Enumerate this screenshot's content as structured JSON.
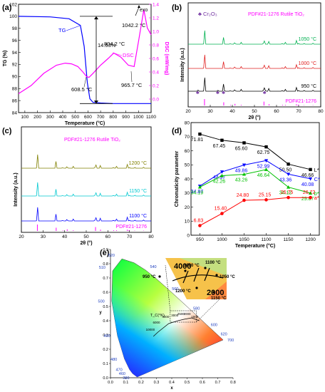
{
  "chart_data": [
    {
      "panel": "(a)",
      "type": "line",
      "xlabel": "Temperature (°C)",
      "ylabel_left": "TG (%)",
      "ylabel_right": "DSC (mW/mg)",
      "xlim": [
        50,
        1100
      ],
      "ylim_left": [
        84,
        102
      ],
      "ylim_right": [
        -0.2,
        1.4
      ],
      "x_ticks": [
        100,
        200,
        300,
        400,
        500,
        600,
        700,
        800,
        900,
        1000,
        1100
      ],
      "y_ticks_left": [
        84,
        86,
        88,
        90,
        92,
        94,
        96,
        98,
        100,
        102
      ],
      "y_ticks_right": [
        0.0,
        0.2,
        0.4,
        0.6,
        0.8,
        1.0,
        1.2,
        1.4
      ],
      "series": [
        {
          "name": "TG",
          "axis": "left",
          "color": "#0000ff",
          "x": [
            50,
            300,
            450,
            540,
            570,
            595,
            615,
            640,
            700,
            800,
            950,
            1100
          ],
          "y": [
            100,
            99.9,
            99.6,
            98.5,
            95,
            89,
            86.3,
            85.7,
            85.6,
            85.5,
            85.5,
            85.5
          ]
        },
        {
          "name": "DSC",
          "axis": "right",
          "color": "#ff00ff",
          "x": [
            50,
            150,
            250,
            350,
            420,
            470,
            520,
            560,
            590,
            608.5,
            640,
            700,
            760,
            804.2,
            860,
            920,
            965.7,
            1000,
            1042.2,
            1070,
            1100
          ],
          "y": [
            0.08,
            0.2,
            0.38,
            0.5,
            0.53,
            0.52,
            0.48,
            0.4,
            0.33,
            0.32,
            0.38,
            0.5,
            0.6,
            0.68,
            0.62,
            0.5,
            0.48,
            0.85,
            1.32,
            1.05,
            0.95
          ]
        }
      ],
      "annotations": [
        "14.53%",
        "608.5 °C",
        "804.2 °C",
        "965.7 °C",
        "1042.2 °C",
        "exo"
      ]
    },
    {
      "panel": "(b)",
      "type": "line",
      "xlabel": "2θ (°)",
      "ylabel": "Intensity (a.u.)",
      "xlim": [
        20,
        80
      ],
      "x_ticks": [
        20,
        30,
        40,
        50,
        60,
        70,
        80
      ],
      "legend": [
        "Cr₂O₃",
        "PDF#21-1276  Rutile TiO₂"
      ],
      "series": [
        {
          "name": "1050 °C",
          "color": "#00b050"
        },
        {
          "name": "1000 °C",
          "color": "#e02020"
        },
        {
          "name": "950 °C",
          "color": "#000000"
        },
        {
          "name": "PDF#21-1276",
          "color": "#ff00ff"
        }
      ],
      "rutile_peaks": [
        [
          27.4,
          100
        ],
        [
          36.1,
          50
        ],
        [
          39.2,
          8
        ],
        [
          41.2,
          25
        ],
        [
          44.0,
          10
        ],
        [
          54.3,
          60
        ],
        [
          56.6,
          20
        ],
        [
          62.7,
          10
        ],
        [
          64.0,
          10
        ],
        [
          69.0,
          20
        ],
        [
          69.8,
          12
        ],
        [
          72.4,
          5
        ],
        [
          76.5,
          5
        ]
      ],
      "cr2o3_marks_2theta": [
        24.5,
        33.6,
        36.2,
        54.8
      ]
    },
    {
      "panel": "(c)",
      "type": "line",
      "xlabel": "2θ (°)",
      "ylabel": "Intensity (a.u.)",
      "xlim": [
        20,
        80
      ],
      "x_ticks": [
        20,
        30,
        40,
        50,
        60,
        70,
        80
      ],
      "legend": [
        "PDF#21-1276  Rutile TiO₂"
      ],
      "series": [
        {
          "name": "1200 °C",
          "color": "#808000"
        },
        {
          "name": "1150 °C",
          "color": "#00c8d0"
        },
        {
          "name": "1100 °C",
          "color": "#0000ff"
        },
        {
          "name": "PDF#21-1276",
          "color": "#ff00ff"
        }
      ],
      "rutile_peaks": [
        [
          27.4,
          100
        ],
        [
          36.1,
          50
        ],
        [
          39.2,
          8
        ],
        [
          41.2,
          25
        ],
        [
          44.0,
          10
        ],
        [
          54.3,
          60
        ],
        [
          56.6,
          20
        ],
        [
          62.7,
          10
        ],
        [
          64.0,
          10
        ],
        [
          69.0,
          20
        ],
        [
          69.8,
          12
        ],
        [
          72.4,
          5
        ],
        [
          76.5,
          5
        ]
      ]
    },
    {
      "panel": "(d)",
      "type": "line",
      "xlabel": "Temperature (°C)",
      "ylabel": "Chromaticity parameter",
      "xlim": [
        930,
        1220
      ],
      "ylim": [
        0,
        80
      ],
      "x_ticks": [
        950,
        1000,
        1050,
        1100,
        1150,
        1200
      ],
      "y_ticks": [
        0,
        10,
        20,
        30,
        40,
        50,
        60,
        70,
        80
      ],
      "categories": [
        950,
        1000,
        1050,
        1100,
        1150,
        1200
      ],
      "series": [
        {
          "name": "L*",
          "color": "#000000",
          "values": [
            71.81,
            67.45,
            65.6,
            62.75,
            50.5,
            46.66
          ]
        },
        {
          "name": "C*",
          "color": "#0000ff",
          "values": [
            34.87,
            44.97,
            49.86,
            52.99,
            43.36,
            40.08
          ]
        },
        {
          "name": "b*",
          "color": "#00c000",
          "values": [
            34.19,
            42.26,
            43.26,
            46.64,
            34.12,
            29.87
          ]
        },
        {
          "name": "a*",
          "color": "#ff0000",
          "values": [
            6.83,
            15.4,
            24.8,
            25.15,
            26.75,
            26.72
          ]
        }
      ]
    },
    {
      "panel": "(e)",
      "type": "scatter",
      "xlabel": "x",
      "ylabel": "y",
      "xlim": [
        0,
        0.8
      ],
      "ylim": [
        0,
        0.9
      ],
      "x_ticks": [
        0.0,
        0.1,
        0.2,
        0.3,
        0.4,
        0.5,
        0.6,
        0.7,
        0.8
      ],
      "y_ticks": [
        0.0,
        0.1,
        0.2,
        0.3,
        0.4,
        0.5,
        0.6,
        0.7,
        0.8,
        0.9
      ],
      "wavelength_labels": [
        380,
        460,
        470,
        480,
        490,
        500,
        510,
        520,
        540,
        560,
        580,
        600,
        620,
        700
      ],
      "planckian_label": "T_C(°K)",
      "cct_labels": [
        10000,
        6000,
        4000,
        3000,
        2500,
        2000,
        1500
      ],
      "inset_cct_labels": [
        4000,
        2000
      ],
      "points": [
        {
          "label": "950 °C",
          "x": 0.43,
          "y": 0.465
        },
        {
          "label": "1000 °C",
          "x": 0.485,
          "y": 0.455
        },
        {
          "label": "1050 °C",
          "x": 0.53,
          "y": 0.43
        },
        {
          "label": "1100 °C",
          "x": 0.515,
          "y": 0.44
        },
        {
          "label": "1150 °C",
          "x": 0.55,
          "y": 0.41
        },
        {
          "label": "1200 °C",
          "x": 0.54,
          "y": 0.415
        }
      ]
    }
  ]
}
